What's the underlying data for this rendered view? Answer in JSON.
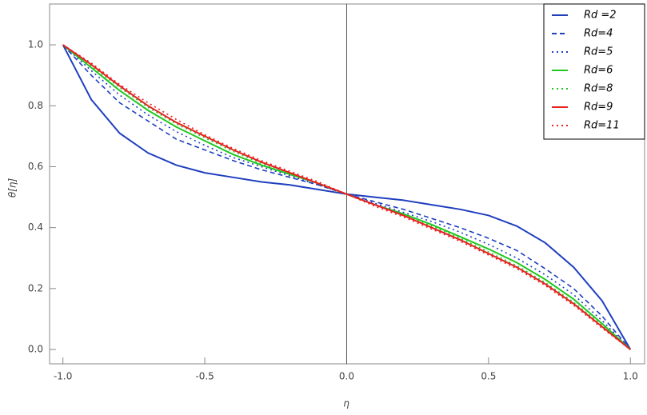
{
  "chart_data": {
    "type": "line",
    "xlabel": "η",
    "ylabel": "θ[η]",
    "x": [
      -1,
      -0.9,
      -0.8,
      -0.7,
      -0.6,
      -0.5,
      -0.4,
      -0.3,
      -0.2,
      -0.1,
      0,
      0.1,
      0.2,
      0.3,
      0.4,
      0.5,
      0.6,
      0.7,
      0.8,
      0.9,
      1
    ],
    "series": [
      {
        "name": "Rd =2",
        "color": "#1f3fbf",
        "style": "solid",
        "values": [
          1.0,
          0.82,
          0.71,
          0.645,
          0.605,
          0.58,
          0.565,
          0.55,
          0.54,
          0.525,
          0.51,
          0.5,
          0.49,
          0.475,
          0.46,
          0.44,
          0.405,
          0.35,
          0.27,
          0.16,
          0
        ]
      },
      {
        "name": "Rd=4",
        "color": "#1f3fbf",
        "style": "dashed",
        "values": [
          1.0,
          0.9,
          0.81,
          0.75,
          0.69,
          0.655,
          0.62,
          0.59,
          0.565,
          0.54,
          0.51,
          0.485,
          0.46,
          0.43,
          0.4,
          0.365,
          0.325,
          0.265,
          0.2,
          0.11,
          0
        ]
      },
      {
        "name": "Rd=5",
        "color": "#1f3fbf",
        "style": "dotted",
        "values": [
          1.0,
          0.915,
          0.835,
          0.77,
          0.715,
          0.67,
          0.63,
          0.6,
          0.57,
          0.54,
          0.51,
          0.48,
          0.45,
          0.42,
          0.385,
          0.345,
          0.3,
          0.245,
          0.18,
          0.095,
          0
        ]
      },
      {
        "name": "Rd=6",
        "color": "#22c722",
        "style": "solid",
        "values": [
          1.0,
          0.925,
          0.85,
          0.785,
          0.73,
          0.685,
          0.64,
          0.605,
          0.575,
          0.545,
          0.51,
          0.475,
          0.445,
          0.41,
          0.37,
          0.33,
          0.285,
          0.23,
          0.165,
          0.085,
          0
        ]
      },
      {
        "name": "Rd=8",
        "color": "#22c722",
        "style": "dotted",
        "values": [
          1.0,
          0.93,
          0.86,
          0.795,
          0.74,
          0.695,
          0.65,
          0.61,
          0.58,
          0.545,
          0.51,
          0.475,
          0.44,
          0.405,
          0.365,
          0.32,
          0.275,
          0.22,
          0.155,
          0.08,
          0
        ]
      },
      {
        "name": "Rd=9",
        "color": "#e82020",
        "style": "solid",
        "values": [
          1.0,
          0.935,
          0.865,
          0.8,
          0.745,
          0.7,
          0.655,
          0.615,
          0.58,
          0.545,
          0.51,
          0.475,
          0.44,
          0.4,
          0.36,
          0.315,
          0.27,
          0.215,
          0.15,
          0.075,
          0
        ]
      },
      {
        "name": "Rd=11",
        "color": "#e82020",
        "style": "dotted",
        "values": [
          1.0,
          0.94,
          0.87,
          0.81,
          0.755,
          0.705,
          0.66,
          0.62,
          0.585,
          0.55,
          0.51,
          0.47,
          0.435,
          0.395,
          0.355,
          0.31,
          0.265,
          0.21,
          0.145,
          0.07,
          0
        ]
      }
    ],
    "xlim": [
      -1.047,
      1.05
    ],
    "xticks": [
      {
        "value": -1,
        "label": "-1.0"
      },
      {
        "value": -0.5,
        "label": "-0.5"
      },
      {
        "value": 0,
        "label": "0.0"
      },
      0.5,
      {
        "value": 1,
        "label": "1.0"
      }
    ],
    "ylim": [
      -0.047,
      1.134
    ],
    "yticks": [
      {
        "value": 0,
        "label": "0.0"
      },
      0.2,
      0.4,
      0.6,
      0.8,
      {
        "value": 1,
        "label": "1.0"
      }
    ],
    "legend": "top-right"
  }
}
